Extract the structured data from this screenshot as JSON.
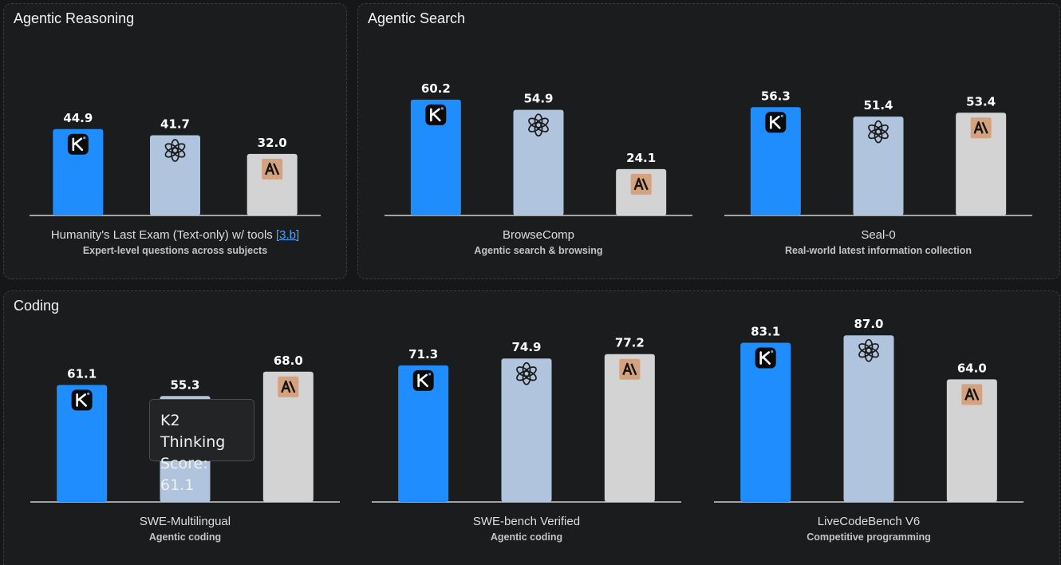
{
  "sections": {
    "reasoning": {
      "title": "Agentic Reasoning"
    },
    "search": {
      "title": "Agentic Search"
    },
    "coding": {
      "title": "Coding"
    }
  },
  "colors": {
    "k2": "#1f8dfd",
    "openai": "#b0c4de",
    "anthropic": "#d3d3d3",
    "anthropic_logo_bg": "#d4a27f",
    "axis": "#cfcfcf"
  },
  "icons": [
    "kimi-logo-icon",
    "openai-logo-icon",
    "anthropic-logo-icon"
  ],
  "tooltip": {
    "line1": "K2 Thinking",
    "line2": "Score: 61.1"
  },
  "chart_data": [
    {
      "type": "bar",
      "benchmark": "Humanity's Last Exam (Text-only) w/ tools",
      "ref": "[3.b]",
      "description": "Expert-level questions across subjects",
      "values": [
        44.9,
        41.7,
        32.0
      ],
      "labels": [
        "44.9",
        "41.7",
        "32.0"
      ],
      "ylim": [
        0,
        100
      ]
    },
    {
      "type": "bar",
      "benchmark": "BrowseComp",
      "description": "Agentic search & browsing",
      "values": [
        60.2,
        54.9,
        24.1
      ],
      "labels": [
        "60.2",
        "54.9",
        "24.1"
      ],
      "ylim": [
        0,
        100
      ]
    },
    {
      "type": "bar",
      "benchmark": "Seal-0",
      "description": "Real-world latest information collection",
      "values": [
        56.3,
        51.4,
        53.4
      ],
      "labels": [
        "56.3",
        "51.4",
        "53.4"
      ],
      "ylim": [
        0,
        100
      ]
    },
    {
      "type": "bar",
      "benchmark": "SWE-Multilingual",
      "description": "Agentic coding",
      "values": [
        61.1,
        55.3,
        68.0
      ],
      "labels": [
        "61.1",
        "55.3",
        "68.0"
      ],
      "ylim": [
        0,
        100
      ]
    },
    {
      "type": "bar",
      "benchmark": "SWE-bench Verified",
      "description": "Agentic coding",
      "values": [
        71.3,
        74.9,
        77.2
      ],
      "labels": [
        "71.3",
        "74.9",
        "77.2"
      ],
      "ylim": [
        0,
        100
      ]
    },
    {
      "type": "bar",
      "benchmark": "LiveCodeBench V6",
      "description": "Competitive programming",
      "values": [
        83.1,
        87.0,
        64.0
      ],
      "labels": [
        "83.1",
        "87.0",
        "64.0"
      ],
      "ylim": [
        0,
        100
      ]
    }
  ]
}
